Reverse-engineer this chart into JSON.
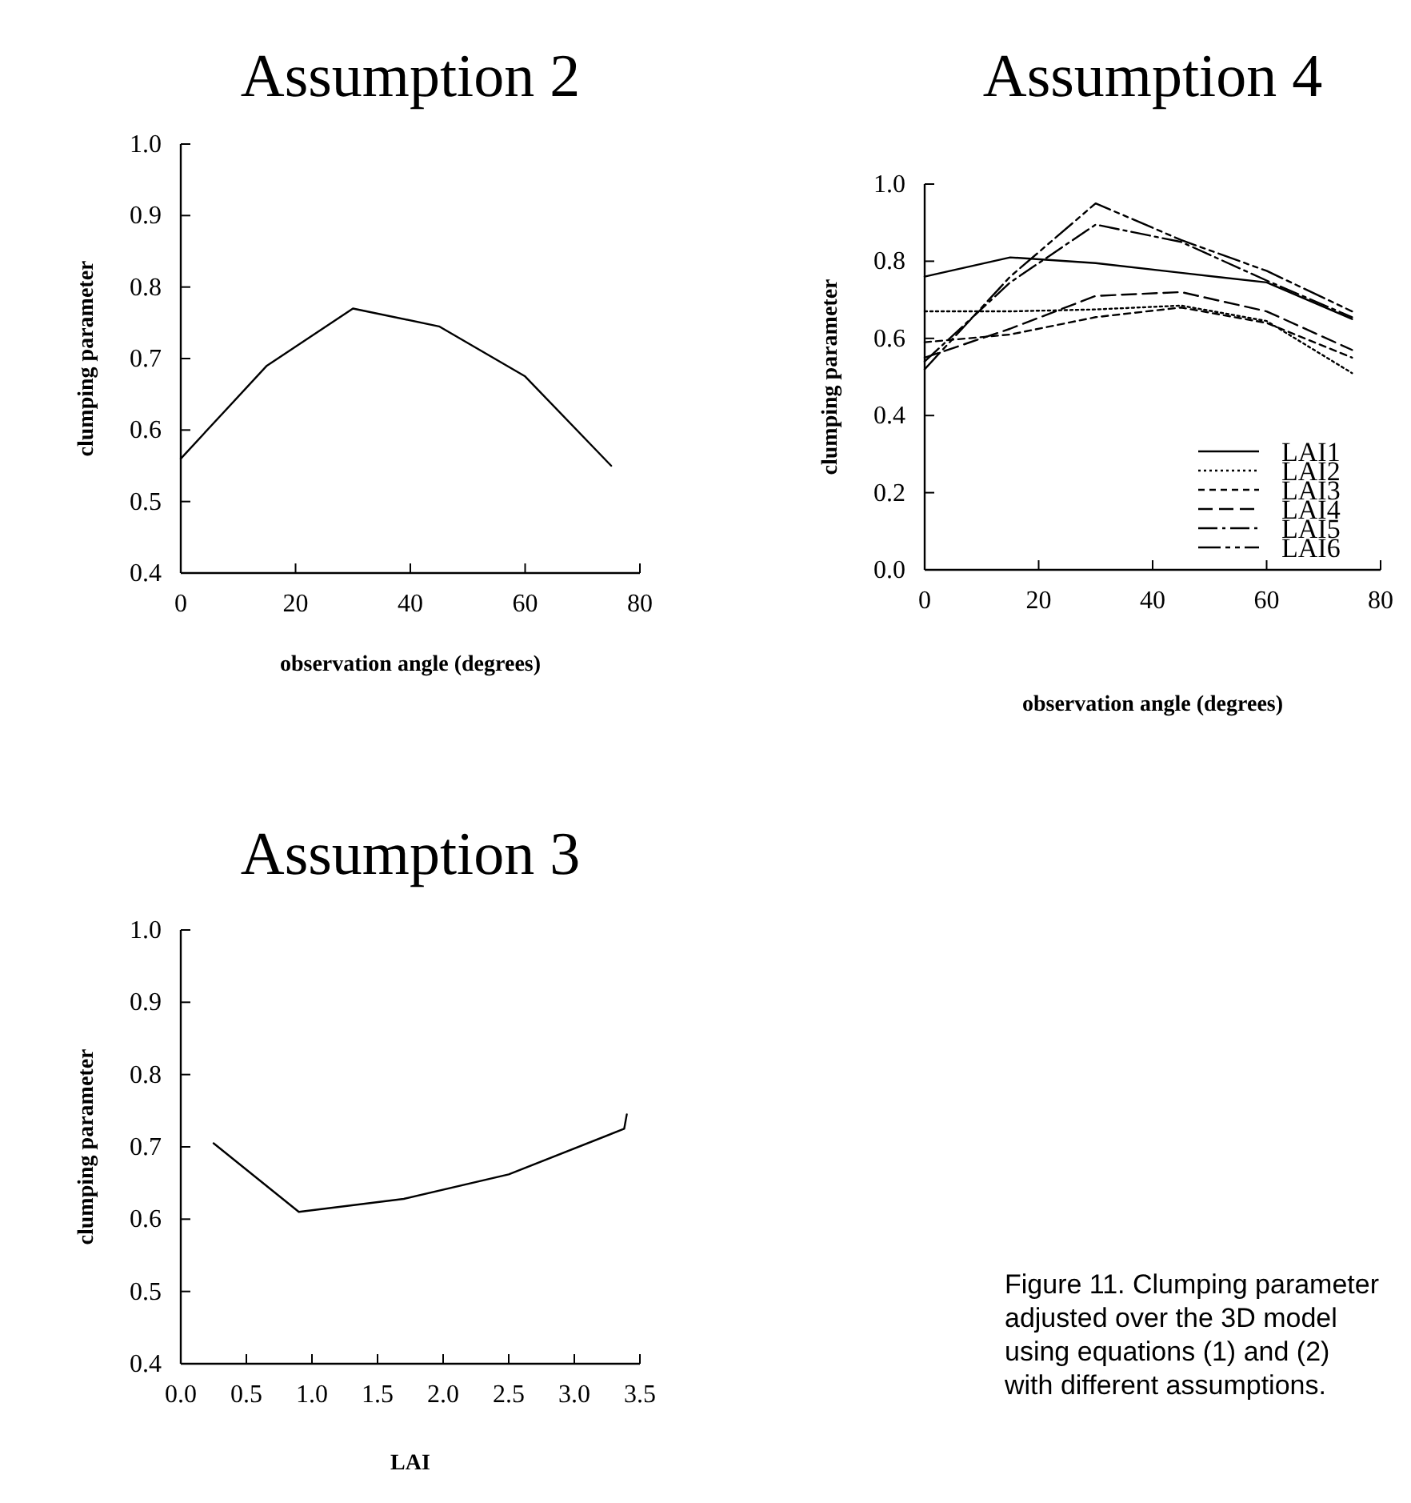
{
  "chart_data": [
    {
      "type": "line",
      "title": "Assumption 2",
      "xlabel": "observation angle (degrees)",
      "ylabel": "clumping parameter",
      "xlim": [
        0,
        80
      ],
      "xticks": [
        0,
        20,
        40,
        60,
        80
      ],
      "ylim": [
        0.4,
        1.0
      ],
      "yticks": [
        {
          "value": 0.4,
          "label": "0.4"
        },
        {
          "value": 0.5,
          "label": "0.5"
        },
        {
          "value": 0.6,
          "label": "0.6"
        },
        {
          "value": 0.7,
          "label": "0.7"
        },
        {
          "value": 0.8,
          "label": "0.8"
        },
        {
          "value": 0.9,
          "label": "0.9"
        },
        {
          "value": 1.0,
          "label": "1.0"
        }
      ],
      "grid": false,
      "legend": false,
      "marker": "none",
      "line_style": "solid",
      "x": [
        0,
        15,
        30,
        45,
        60,
        75
      ],
      "series": [
        {
          "color": "#000000",
          "values": [
            0.56,
            0.69,
            0.77,
            0.745,
            0.675,
            0.55
          ]
        }
      ]
    },
    {
      "type": "line",
      "title": "Assumption 4",
      "xlabel": "observation angle (degrees)",
      "ylabel": "clumping parameter",
      "xlim": [
        0,
        80
      ],
      "xticks": [
        0,
        20,
        40,
        60,
        80
      ],
      "ylim": [
        0,
        1.0
      ],
      "yticks": [
        {
          "value": 0,
          "label": "0.0"
        },
        {
          "value": 0.2,
          "label": "0.2"
        },
        {
          "value": 0.4,
          "label": "0.4"
        },
        {
          "value": 0.6,
          "label": "0.6"
        },
        {
          "value": 0.8,
          "label": "0.8"
        },
        {
          "value": 1.0,
          "label": "1.0"
        }
      ],
      "grid": false,
      "legend": "bottom right",
      "marker": "none",
      "x": [
        0,
        15,
        30,
        45,
        60,
        75
      ],
      "series": [
        {
          "name": "LAI1",
          "color": "#000000",
          "line_style": "solid",
          "values": [
            0.76,
            0.81,
            0.795,
            0.77,
            0.745,
            0.65
          ]
        },
        {
          "name": "LAI2",
          "color": "#000000",
          "line_style": "dotted",
          "values": [
            0.67,
            0.67,
            0.675,
            0.685,
            0.645,
            0.51
          ]
        },
        {
          "name": "LAI3",
          "color": "#000000",
          "line_style": "dashed",
          "values": [
            0.59,
            0.61,
            0.655,
            0.68,
            0.64,
            0.55
          ]
        },
        {
          "name": "LAI4",
          "color": "#000000",
          "line_style": "dashed",
          "values": [
            0.55,
            0.625,
            0.71,
            0.72,
            0.67,
            0.57
          ]
        },
        {
          "name": "LAI5",
          "color": "#000000",
          "line_style": "dashed",
          "values": [
            0.54,
            0.745,
            0.895,
            0.85,
            0.75,
            0.655
          ]
        },
        {
          "name": "LAI6",
          "color": "#000000",
          "line_style": "dashed",
          "values": [
            0.52,
            0.76,
            0.95,
            0.855,
            0.775,
            0.67
          ]
        }
      ]
    },
    {
      "type": "line",
      "title": "Assumption 3",
      "xlabel": "LAI",
      "ylabel": "clumping parameter",
      "xlim": [
        0,
        3.5
      ],
      "xticks": [
        {
          "value": 0,
          "label": "0.0"
        },
        0.5,
        {
          "value": 1,
          "label": "1.0"
        },
        1.5,
        {
          "value": 2,
          "label": "2.0"
        },
        2.5,
        {
          "value": 3,
          "label": "3.0"
        },
        3.5
      ],
      "ylim": [
        0.4,
        1.0
      ],
      "yticks": [
        {
          "value": 0.4,
          "label": "0.4"
        },
        {
          "value": 0.5,
          "label": "0.5"
        },
        {
          "value": 0.6,
          "label": "0.6"
        },
        {
          "value": 0.7,
          "label": "0.7"
        },
        {
          "value": 0.8,
          "label": "0.8"
        },
        {
          "value": 0.9,
          "label": "0.9"
        },
        {
          "value": 1.0,
          "label": "1.0"
        }
      ],
      "grid": false,
      "legend": false,
      "marker": "none",
      "line_style": "solid",
      "x": [
        0.25,
        0.9,
        1.7,
        2.5,
        3.38,
        3.4
      ],
      "series": [
        {
          "color": "#000000",
          "values": [
            0.705,
            0.61,
            0.628,
            0.662,
            0.725,
            0.745
          ]
        }
      ],
      "annotations": [
        "Figure 11. Clumping parameter adjusted over the 3D model using equations (1) and (2) with different assumptions."
      ]
    }
  ]
}
